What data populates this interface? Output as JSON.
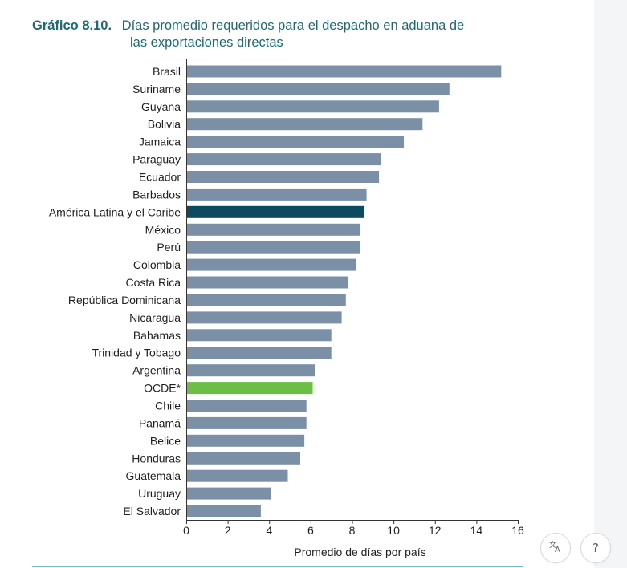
{
  "title": {
    "number": "Gráfico 8.10.",
    "text_line1": "Días promedio requeridos para el despacho en aduana de",
    "text_line2": "las exportaciones directas"
  },
  "chart_data": {
    "type": "bar",
    "orientation": "horizontal",
    "title": "Días promedio requeridos para el despacho en aduana de las exportaciones directas",
    "xlabel": "Promedio de días por país",
    "ylabel": "",
    "xlim": [
      0,
      16
    ],
    "xticks": [
      0,
      2,
      4,
      6,
      8,
      10,
      12,
      14,
      16
    ],
    "grid": false,
    "categories": [
      "Brasil",
      "Suriname",
      "Guyana",
      "Bolivia",
      "Jamaica",
      "Paraguay",
      "Ecuador",
      "Barbados",
      "América Latina y el Caribe",
      "México",
      "Perú",
      "Colombia",
      "Costa Rica",
      "República Dominicana",
      "Nicaragua",
      "Bahamas",
      "Trinidad y Tobago",
      "Argentina",
      "OCDE*",
      "Chile",
      "Panamá",
      "Belice",
      "Honduras",
      "Guatemala",
      "Uruguay",
      "El Salvador"
    ],
    "values": [
      15.2,
      12.7,
      12.2,
      11.4,
      10.5,
      9.4,
      9.3,
      8.7,
      8.6,
      8.4,
      8.4,
      8.2,
      7.8,
      7.7,
      7.5,
      7.0,
      7.0,
      6.2,
      6.1,
      5.8,
      5.8,
      5.7,
      5.5,
      4.9,
      4.1,
      3.6
    ],
    "colors": {
      "default": "#7b90a6",
      "América Latina y el Caribe": "#0c4a61",
      "OCDE*": "#6cbe45"
    }
  },
  "ui": {
    "translate_icon": "translate-icon",
    "help_label": "?"
  }
}
